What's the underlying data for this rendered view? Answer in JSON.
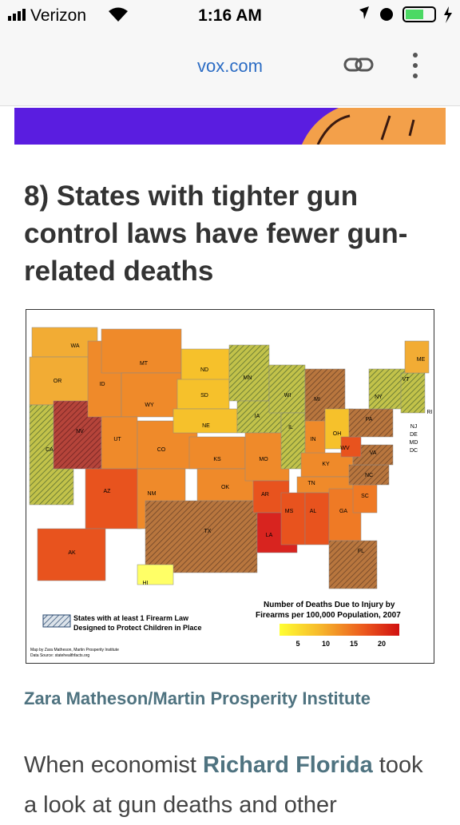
{
  "status_bar": {
    "carrier": "Verizon",
    "time": "1:16 AM"
  },
  "browser": {
    "url": "vox.com"
  },
  "article": {
    "heading": "8) States with tighter gun control laws have fewer gun-related deaths",
    "map": {
      "state_labels": [
        "WA",
        "OR",
        "CA",
        "NV",
        "ID",
        "MT",
        "WY",
        "UT",
        "CO",
        "AZ",
        "NM",
        "ND",
        "SD",
        "NE",
        "KS",
        "OK",
        "TX",
        "MN",
        "IA",
        "MO",
        "AR",
        "LA",
        "WI",
        "IL",
        "MI",
        "IN",
        "OH",
        "KY",
        "TN",
        "MS",
        "AL",
        "GA",
        "FL",
        "SC",
        "NC",
        "VA",
        "WV",
        "PA",
        "NY",
        "VT",
        "ME",
        "NJ",
        "DE",
        "MD",
        "DC",
        "RI",
        "AK",
        "HI"
      ],
      "hatch_legend": [
        "States with at least 1 Firearm Law",
        "Designed to Protect Children in Place"
      ],
      "scale_title": [
        "Number of Deaths Due to Injury by",
        "Firearms per 100,000 Population, 2007"
      ],
      "scale_ticks": [
        5,
        10,
        15,
        20
      ],
      "credits": [
        "Map by Zara Matheson, Martin Prosperity Institute",
        "Data Source: statehealthfacts.org"
      ]
    },
    "image_credit": "Zara Matheson/Martin Prosperity Institute",
    "body": {
      "before": "When economist ",
      "link": "Richard Florida",
      "after": " took a look at gun deaths and other"
    }
  }
}
